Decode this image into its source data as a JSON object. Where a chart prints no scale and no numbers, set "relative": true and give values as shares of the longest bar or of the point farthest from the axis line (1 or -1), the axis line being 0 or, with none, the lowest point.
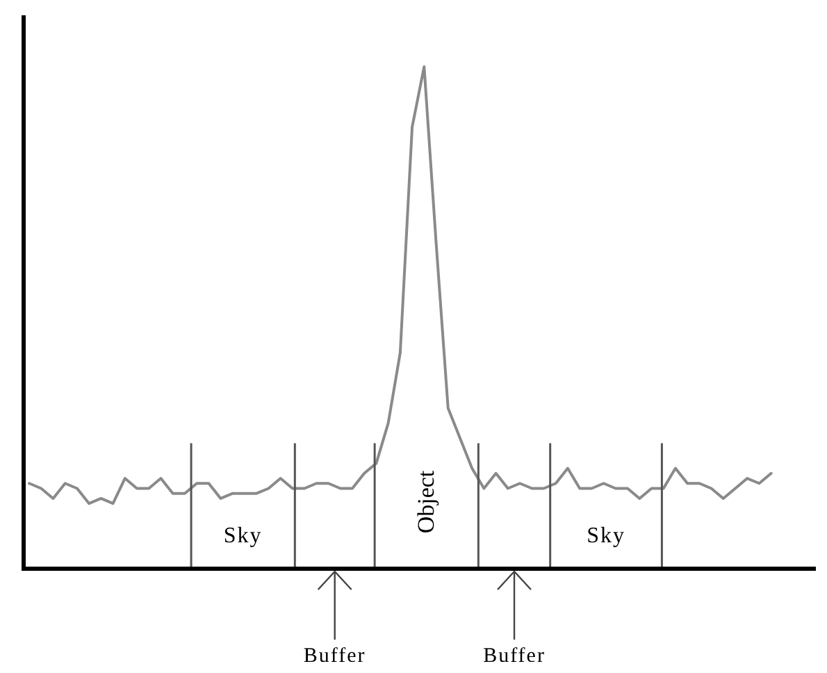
{
  "chart_data": {
    "type": "line",
    "relative": true,
    "categories": [
      null,
      null,
      null,
      null,
      null,
      null,
      null,
      null,
      null,
      null,
      null,
      null,
      null,
      null,
      null,
      null,
      null,
      null,
      null,
      null,
      null,
      null,
      null,
      null,
      null,
      null,
      null,
      null,
      null,
      null,
      null,
      null,
      null,
      null,
      null,
      null,
      null,
      null,
      null,
      null,
      null,
      null,
      null,
      null,
      null,
      null,
      null,
      null,
      null,
      null,
      null,
      null,
      null,
      null,
      null,
      null,
      null,
      null,
      null,
      null,
      null,
      null,
      null
    ],
    "series": [
      {
        "color": "#8a8a8a",
        "values": [
          0.17,
          0.16,
          0.14,
          0.17,
          0.16,
          0.13,
          0.14,
          0.13,
          0.18,
          0.16,
          0.16,
          0.18,
          0.15,
          0.15,
          0.17,
          0.17,
          0.14,
          0.15,
          0.15,
          0.15,
          0.16,
          0.18,
          0.16,
          0.16,
          0.17,
          0.17,
          0.16,
          0.16,
          0.19,
          0.21,
          0.29,
          0.43,
          0.88,
          1,
          0.65,
          0.32,
          0.26,
          0.2,
          0.16,
          0.19,
          0.16,
          0.17,
          0.16,
          0.16,
          0.17,
          0.2,
          0.16,
          0.16,
          0.17,
          0.16,
          0.16,
          0.14,
          0.16,
          0.16,
          0.2,
          0.17,
          0.17,
          0.16,
          0.14,
          0.16,
          0.18,
          0.17,
          0.19
        ]
      }
    ],
    "annotations": [
      "Sky",
      "Buffer",
      "Object",
      "Buffer",
      "Sky"
    ]
  }
}
